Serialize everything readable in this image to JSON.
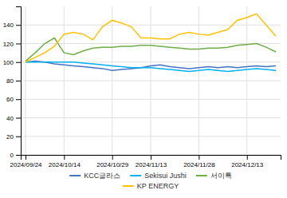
{
  "chart_data": {
    "type": "line",
    "categories": [
      "2024/09/24",
      null,
      null,
      null,
      "2024/10/14",
      null,
      null,
      null,
      null,
      "2024/10/29",
      null,
      null,
      null,
      "2024/11/13",
      null,
      null,
      null,
      null,
      "2024/11/28",
      null,
      null,
      null,
      null,
      "2024/12/13",
      null,
      null,
      null
    ],
    "series": [
      {
        "name": "KCC글라스",
        "color": "#4472C4",
        "values": [
          100,
          101,
          100,
          98,
          97,
          96,
          95,
          94,
          93,
          91,
          92,
          93,
          94,
          96,
          97,
          95,
          94,
          93,
          94,
          95,
          94,
          95,
          94,
          95,
          96,
          95,
          96
        ]
      },
      {
        "name": "Sekisui Jushi",
        "color": "#00B0F0",
        "values": [
          100,
          100,
          100,
          100,
          100,
          100,
          99,
          98,
          97,
          96,
          95,
          94,
          94,
          94,
          93,
          92,
          91,
          90,
          91,
          92,
          91,
          90,
          91,
          92,
          93,
          92,
          91
        ]
      },
      {
        "name": "서이특",
        "color": "#70AD47",
        "values": [
          101,
          110,
          120,
          126,
          110,
          108,
          112,
          115,
          116,
          116,
          117,
          117,
          118,
          118,
          117,
          116,
          115,
          114,
          114,
          115,
          115,
          116,
          118,
          119,
          120,
          116,
          111
        ]
      },
      {
        "name": "KP ENERGY",
        "color": "#FFC000",
        "values": [
          100,
          105,
          110,
          117,
          130,
          132,
          130,
          124,
          138,
          145,
          142,
          138,
          126,
          126,
          125,
          125,
          130,
          132,
          130,
          129,
          132,
          135,
          145,
          148,
          152,
          140,
          128
        ]
      }
    ],
    "ylim": [
      0,
      160
    ],
    "yticks": [
      0,
      20,
      40,
      60,
      80,
      100,
      120,
      140
    ],
    "grid": true,
    "legend": "bottom"
  }
}
